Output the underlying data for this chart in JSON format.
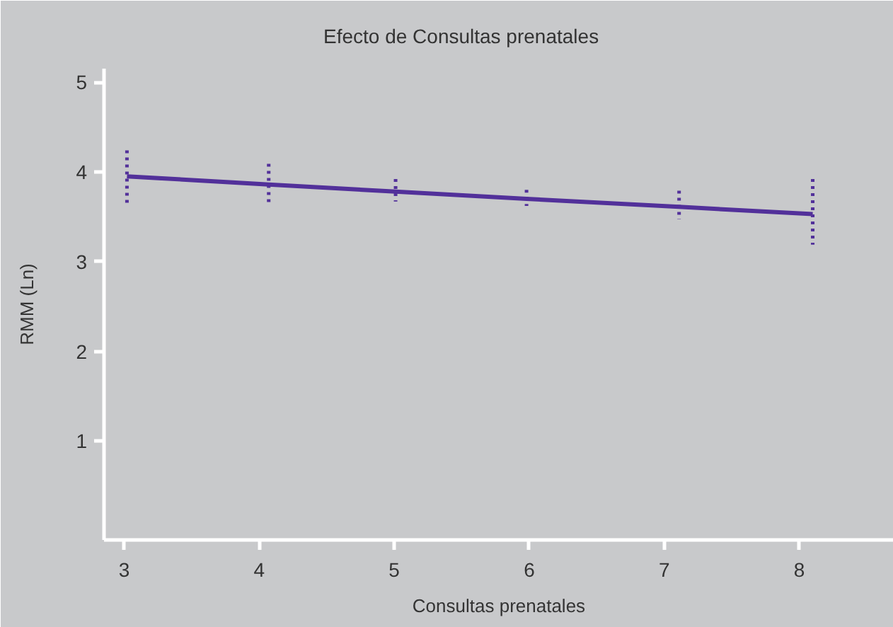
{
  "chart_data": {
    "type": "line",
    "title": "Efecto de Consultas prenatales",
    "xlabel": "Consultas prenatales",
    "ylabel": "RMM (Ln)",
    "x": [
      3.02,
      4.07,
      5.01,
      5.98,
      7.11,
      8.1
    ],
    "values": [
      3.95,
      3.86,
      3.78,
      3.7,
      3.61,
      3.53
    ],
    "color": "#52309a",
    "errors": [
      [
        3.62,
        4.24
      ],
      [
        3.62,
        4.09
      ],
      [
        3.67,
        3.92
      ],
      [
        3.62,
        3.8
      ],
      [
        3.47,
        3.79
      ],
      [
        3.19,
        3.92
      ]
    ],
    "xlim": [
      2.85,
      8.7
    ],
    "ylim": [
      -0.1,
      5.15
    ],
    "xticks": [
      3,
      4,
      5,
      6,
      7,
      8
    ],
    "yticks": [
      1,
      2,
      3,
      4,
      5
    ],
    "grid": false
  }
}
